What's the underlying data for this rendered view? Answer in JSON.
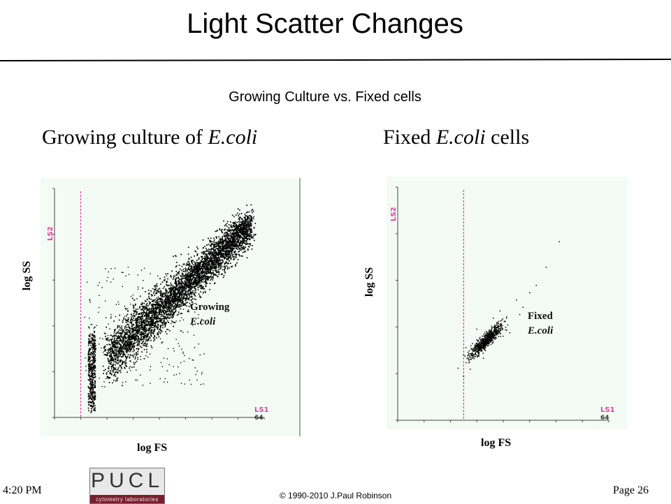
{
  "slide": {
    "title": "Light Scatter Changes",
    "subtitle": "Growing Culture vs. Fixed cells",
    "footer_time": "4:20 PM",
    "footer_page": "Page 26",
    "copyright": "© 1990-2010  J.Paul Robinson",
    "logo": {
      "text": "PUCL",
      "subtitle": "cytometry laboratories"
    }
  },
  "panels": [
    {
      "heading_pre": "Growing culture of ",
      "heading_em": "E.coli",
      "heading_post": "",
      "xlabel": "log FS",
      "ylabel": "log SS"
    },
    {
      "heading_pre": "Fixed  ",
      "heading_em": "E.coli",
      "heading_post": " cells",
      "xlabel": "log FS",
      "ylabel": "log SS"
    }
  ],
  "chart_data": [
    {
      "type": "scatter",
      "title": "Growing culture of E.coli",
      "xlabel": "log FS",
      "ylabel": "log SS",
      "x_channel_label": "LS1",
      "y_channel_label": "LS2",
      "xmax_label": "64",
      "xlim": [
        0,
        64
      ],
      "ylim": [
        0,
        64
      ],
      "gate_x": 8,
      "annotation": {
        "line1": "Growing",
        "line2": "E.coli"
      },
      "series": [
        {
          "distribution": "elongated band",
          "x_range": [
            10,
            60
          ],
          "y_range": [
            3,
            55
          ],
          "n_points": 5000
        },
        {
          "distribution": "diffuse scatter",
          "x_range": [
            9,
            46
          ],
          "y_range": [
            8,
            42
          ],
          "n_points": 260
        }
      ]
    },
    {
      "type": "scatter",
      "title": "Fixed E.coli cells",
      "xlabel": "log FS",
      "ylabel": "log SS",
      "x_channel_label": "LS1",
      "y_channel_label": "LS2",
      "xmax_label": "64",
      "xlim": [
        0,
        64
      ],
      "ylim": [
        0,
        64
      ],
      "gate_x": 20,
      "annotation": {
        "line1": "Fixed",
        "line2": "E.coli"
      },
      "series": [
        {
          "distribution": "compact cluster",
          "center": [
            27,
            22
          ],
          "n_points": 700
        },
        {
          "distribution": "sparse outliers",
          "n_points": 18
        }
      ]
    }
  ]
}
